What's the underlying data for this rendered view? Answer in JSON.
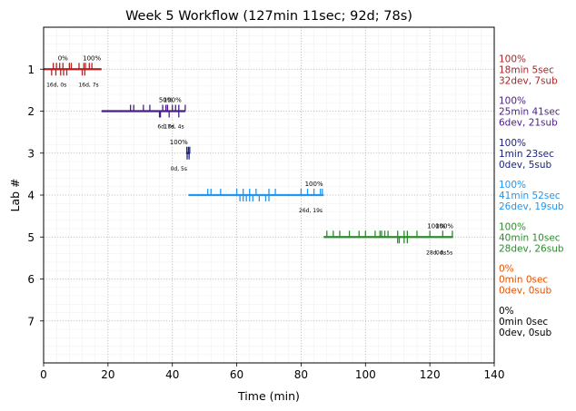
{
  "chart_data": {
    "type": "timeline",
    "title": "Week 5 Workflow (127min 11sec; 92d; 78s)",
    "xlabel": "Time (min)",
    "ylabel": "Lab #",
    "xlim": [
      0,
      140
    ],
    "ylim": [
      8,
      0
    ],
    "xticks": [
      0,
      20,
      40,
      60,
      80,
      100,
      120,
      140
    ],
    "yticks": [
      1,
      2,
      3,
      4,
      5,
      6,
      7
    ],
    "grid": true,
    "labs": [
      {
        "lab": 1,
        "color": "#b22222",
        "start": 0,
        "end": 18,
        "dev_ticks": [
          3,
          4,
          5,
          6,
          8,
          8.6,
          11,
          12.5,
          13,
          14.2,
          15
        ],
        "sub_ticks": [
          2.5,
          3.8,
          5.3,
          6.2,
          7.2,
          12,
          12.8
        ],
        "pct_labels": [
          {
            "x": 6,
            "text": "0%"
          },
          {
            "x": 15,
            "text": "100%"
          }
        ],
        "below_labels": [
          {
            "x": 4,
            "text": "16d, 0s"
          },
          {
            "x": 14,
            "text": "16d, 7s"
          }
        ],
        "summary": [
          "100%",
          "18min 5sec",
          "32dev, 7sub"
        ]
      },
      {
        "lab": 2,
        "color": "#4b1b8c",
        "start": 18,
        "end": 44,
        "dev_ticks": [
          27,
          28,
          31,
          33,
          37,
          38,
          38.5,
          40,
          41,
          42,
          44
        ],
        "sub_ticks": [
          36,
          36.3,
          39,
          42
        ],
        "pct_labels": [
          {
            "x": 38,
            "text": "50%"
          },
          {
            "x": 40,
            "text": "100%"
          }
        ],
        "below_labels": [
          {
            "x": 38,
            "text": "6d, 0s"
          },
          {
            "x": 40.5,
            "text": "17d, 4s"
          }
        ],
        "summary": [
          "100%",
          "25min 41sec",
          "6dev, 21sub"
        ]
      },
      {
        "lab": 3,
        "color": "#1a237e",
        "start": 44.3,
        "end": 45.5,
        "dev_ticks": [
          44.5,
          45,
          45.4
        ],
        "sub_ticks": [
          44.6,
          45.2
        ],
        "pct_labels": [
          {
            "x": 42,
            "text": "100%"
          }
        ],
        "below_labels": [
          {
            "x": 42,
            "text": "0d, 5s"
          }
        ],
        "summary": [
          "100%",
          "1min 23sec",
          "0dev, 5sub"
        ]
      },
      {
        "lab": 4,
        "color": "#2196f3",
        "start": 45,
        "end": 87,
        "dev_ticks": [
          51,
          52,
          55,
          60,
          62,
          64,
          66,
          70,
          72,
          80,
          82,
          84,
          86,
          86.6
        ],
        "sub_ticks": [
          61,
          62,
          63,
          64,
          65,
          67,
          69,
          70
        ],
        "pct_labels": [
          {
            "x": 84,
            "text": "100%"
          }
        ],
        "below_labels": [
          {
            "x": 83,
            "text": "26d, 19s"
          }
        ],
        "summary": [
          "100%",
          "41min 52sec",
          "26dev, 19sub"
        ]
      },
      {
        "lab": 5,
        "color": "#2e8b2e",
        "start": 87,
        "end": 127.2,
        "dev_ticks": [
          88,
          90,
          92,
          95,
          98,
          100,
          103,
          104.5,
          105,
          106,
          107,
          110,
          112,
          113,
          116,
          120,
          124,
          127
        ],
        "sub_ticks": [
          110,
          110.5,
          112,
          113
        ],
        "pct_labels": [
          {
            "x": 122,
            "text": "100%"
          },
          {
            "x": 124.5,
            "text": "100%"
          }
        ],
        "below_labels": [
          {
            "x": 122,
            "text": "28d, 0s"
          },
          {
            "x": 124.5,
            "text": "0d, 5s"
          }
        ],
        "summary": [
          "100%",
          "40min 10sec",
          "28dev, 26sub"
        ]
      },
      {
        "lab": 6,
        "color": "#e65100",
        "start": null,
        "end": null,
        "dev_ticks": [],
        "sub_ticks": [],
        "pct_labels": [],
        "below_labels": [],
        "summary": [
          "0%",
          "0min 0sec",
          "0dev, 0sub"
        ]
      },
      {
        "lab": 7,
        "color": "#000000",
        "start": null,
        "end": null,
        "dev_ticks": [],
        "sub_ticks": [],
        "pct_labels": [],
        "below_labels": [],
        "summary": [
          "0%",
          "0min 0sec",
          "0dev, 0sub"
        ]
      }
    ]
  }
}
